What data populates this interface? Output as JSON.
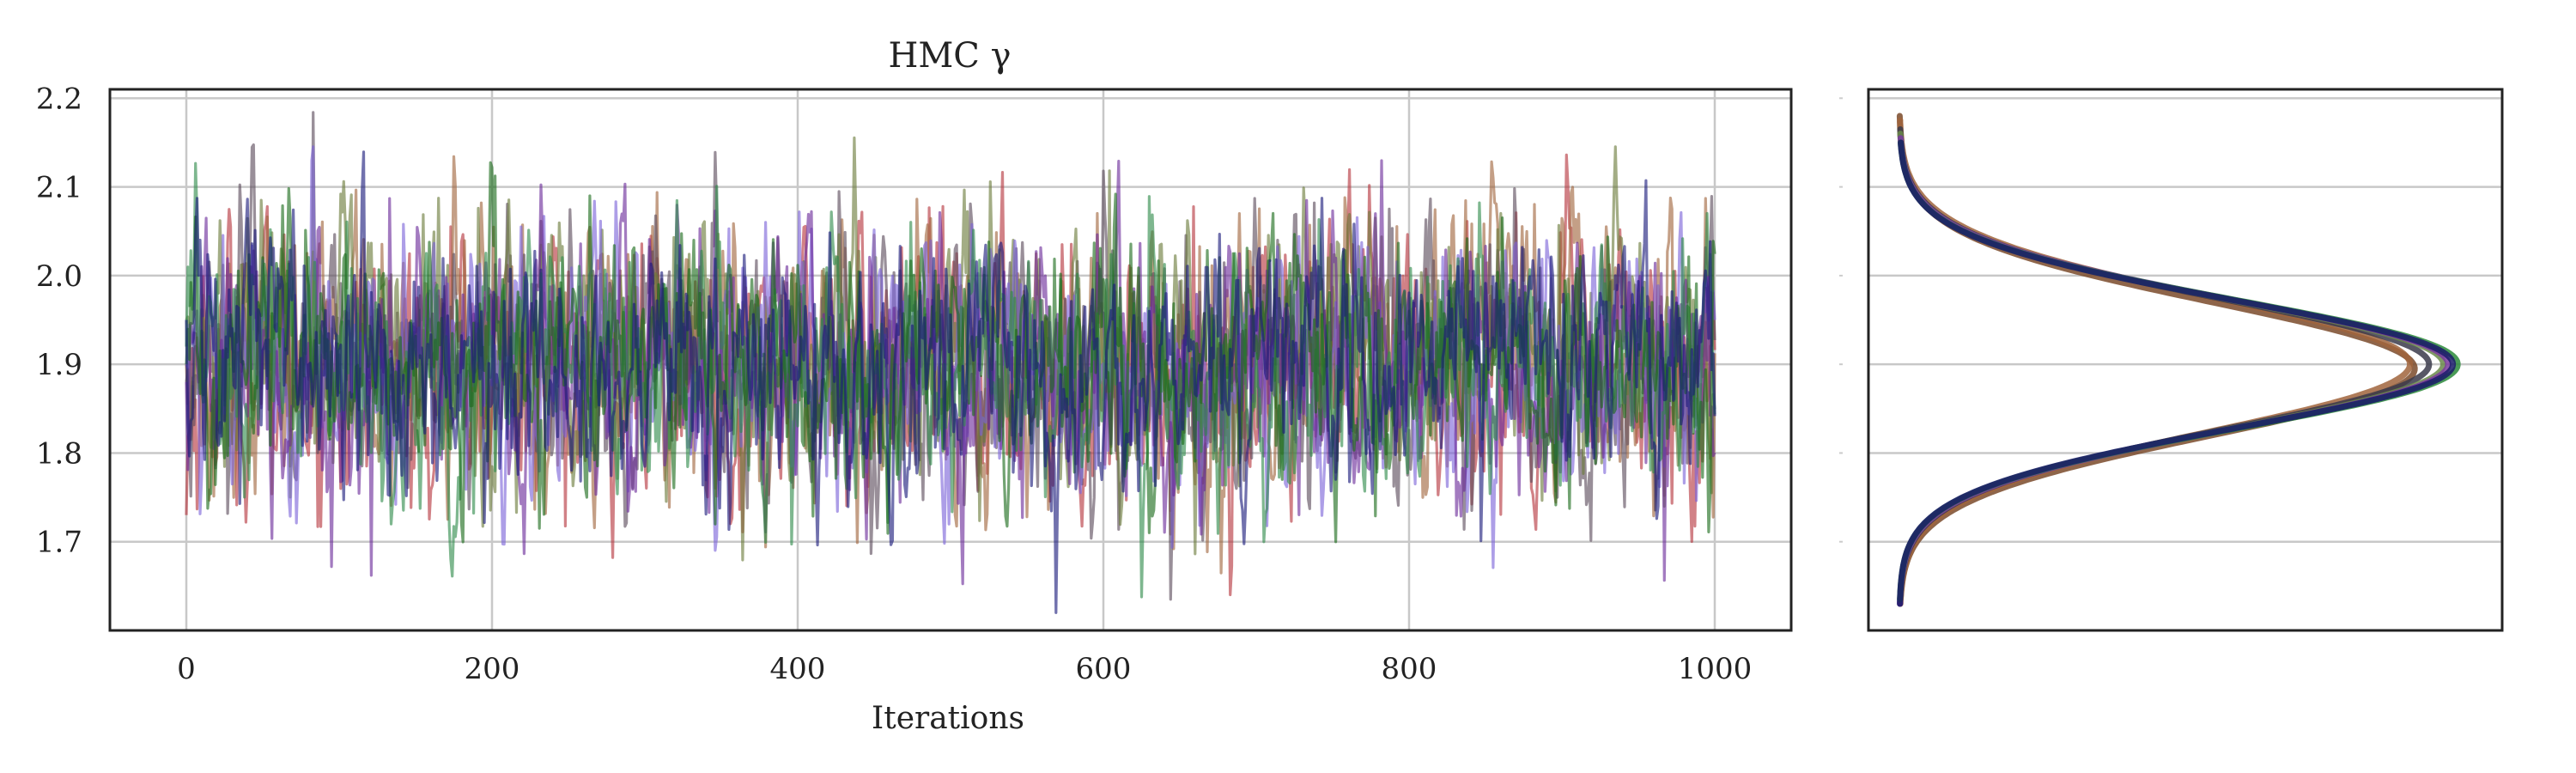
{
  "chart_data": [
    {
      "type": "line",
      "panel": "trace",
      "title": "HMC γ",
      "xlabel": "Iterations",
      "ylabel": "",
      "xlim": [
        -50,
        1050
      ],
      "ylim": [
        1.6,
        2.21
      ],
      "xticks": [
        0,
        200,
        400,
        600,
        800,
        1000
      ],
      "xtick_labels": [
        "0",
        "200",
        "400",
        "600",
        "800",
        "1000"
      ],
      "yticks": [
        1.7,
        1.8,
        1.9,
        2.0,
        2.1,
        2.2
      ],
      "ytick_labels": [
        "1.7",
        "1.8",
        "1.9",
        "2.0",
        "2.1",
        "2.2"
      ],
      "grid": true,
      "n_iterations": 1001,
      "series": [
        {
          "color": "#b5343b",
          "mean": 1.895,
          "sd": 0.078,
          "start": 1.73
        },
        {
          "color": "#a0643c",
          "mean": 1.905,
          "sd": 0.08,
          "start": 1.9
        },
        {
          "color": "#5a4a5a",
          "mean": 1.9,
          "sd": 0.076,
          "start": 1.88
        },
        {
          "color": "#6a7a3a",
          "mean": 1.905,
          "sd": 0.075,
          "start": 1.95
        },
        {
          "color": "#7b63d8",
          "mean": 1.9,
          "sd": 0.074,
          "start": 1.9
        },
        {
          "color": "#6a2a9a",
          "mean": 1.898,
          "sd": 0.075,
          "start": 1.88
        },
        {
          "color": "#2e8a4a",
          "mean": 1.895,
          "sd": 0.072,
          "start": 1.92
        },
        {
          "color": "#1a6a1a",
          "mean": 1.9,
          "sd": 0.07,
          "start": 1.9
        },
        {
          "color": "#1a1a7a",
          "mean": 1.9,
          "sd": 0.07,
          "start": 1.95
        }
      ]
    },
    {
      "type": "line",
      "panel": "density",
      "title": "",
      "xlabel": "",
      "ylabel": "",
      "ylim": [
        1.6,
        2.21
      ],
      "yticks": [
        1.7,
        1.8,
        1.9,
        2.0,
        2.1,
        2.2
      ],
      "grid": true,
      "series": [
        {
          "color": "#7a4a2a",
          "mean": 1.895,
          "sd": 0.075,
          "peak": 5.4,
          "ymin": 1.63,
          "ymax": 2.18
        },
        {
          "color": "#a0643c",
          "mean": 1.9,
          "sd": 0.076,
          "peak": 5.35,
          "ymin": 1.635,
          "ymax": 2.175
        },
        {
          "color": "#3a3a4a",
          "mean": 1.9,
          "sd": 0.074,
          "peak": 5.55,
          "ymin": 1.635,
          "ymax": 2.165
        },
        {
          "color": "#6a8a4a",
          "mean": 1.9,
          "sd": 0.073,
          "peak": 5.7,
          "ymin": 1.635,
          "ymax": 2.16
        },
        {
          "color": "#7a3aa0",
          "mean": 1.9,
          "sd": 0.073,
          "peak": 5.75,
          "ymin": 1.63,
          "ymax": 2.155
        },
        {
          "color": "#2a8a3a",
          "mean": 1.9,
          "sd": 0.072,
          "peak": 5.85,
          "ymin": 1.635,
          "ymax": 2.15
        },
        {
          "color": "#1a1a6a",
          "mean": 1.9,
          "sd": 0.072,
          "peak": 5.8,
          "ymin": 1.63,
          "ymax": 2.15
        }
      ]
    }
  ]
}
